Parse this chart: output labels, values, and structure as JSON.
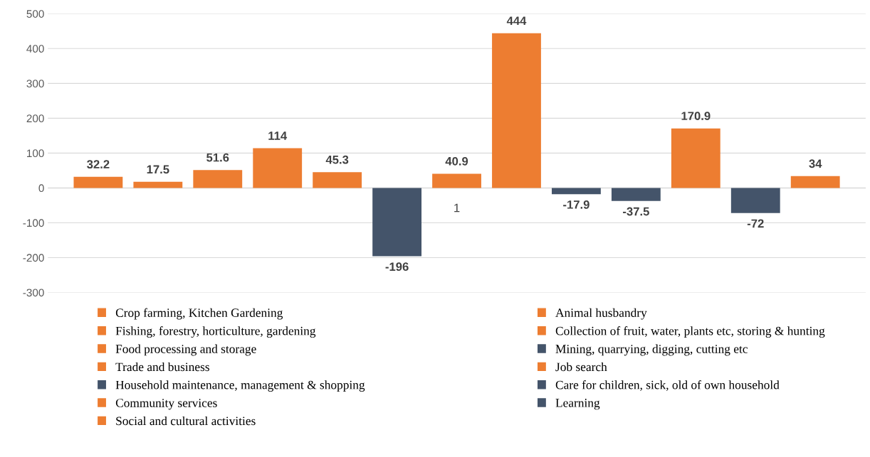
{
  "chart_data": {
    "type": "bar",
    "categories": [
      null
    ],
    "series": [
      {
        "name": "Crop farming, Kitchen Gardening",
        "color": "#ed7d31",
        "values": [
          32.2
        ]
      },
      {
        "name": "Animal husbandry",
        "color": "#ed7d31",
        "values": [
          17.5
        ]
      },
      {
        "name": "Fishing, forestry, horticulture, gardening",
        "color": "#ed7d31",
        "values": [
          51.6
        ]
      },
      {
        "name": "Collection of fruit, water, plants etc, storing & hunting",
        "color": "#ed7d31",
        "values": [
          114
        ]
      },
      {
        "name": "Food processing and storage",
        "color": "#ed7d31",
        "values": [
          45.3
        ]
      },
      {
        "name": "Mining, quarrying, digging, cutting etc",
        "color": "#44546a",
        "values": [
          -196
        ]
      },
      {
        "name": "Trade and business",
        "color": "#ed7d31",
        "values": [
          40.9
        ]
      },
      {
        "name": "Job search",
        "color": "#ed7d31",
        "values": [
          444
        ]
      },
      {
        "name": "Household maintenance, management & shopping",
        "color": "#44546a",
        "values": [
          -17.9
        ]
      },
      {
        "name": "Care for children, sick, old of own household",
        "color": "#44546a",
        "values": [
          -37.5
        ]
      },
      {
        "name": "Community services",
        "color": "#ed7d31",
        "values": [
          170.9
        ]
      },
      {
        "name": "Learning",
        "color": "#44546a",
        "values": [
          -72
        ]
      },
      {
        "name": "Social and cultural activities",
        "color": "#ed7d31",
        "values": [
          34
        ]
      }
    ],
    "ylim": [
      -300,
      500
    ],
    "yticks": [
      -300,
      -200,
      -100,
      0,
      100,
      200,
      300,
      400,
      500
    ],
    "grid": "y",
    "legend": "bottom",
    "data_labels": true,
    "annotations": [
      "1"
    ]
  }
}
